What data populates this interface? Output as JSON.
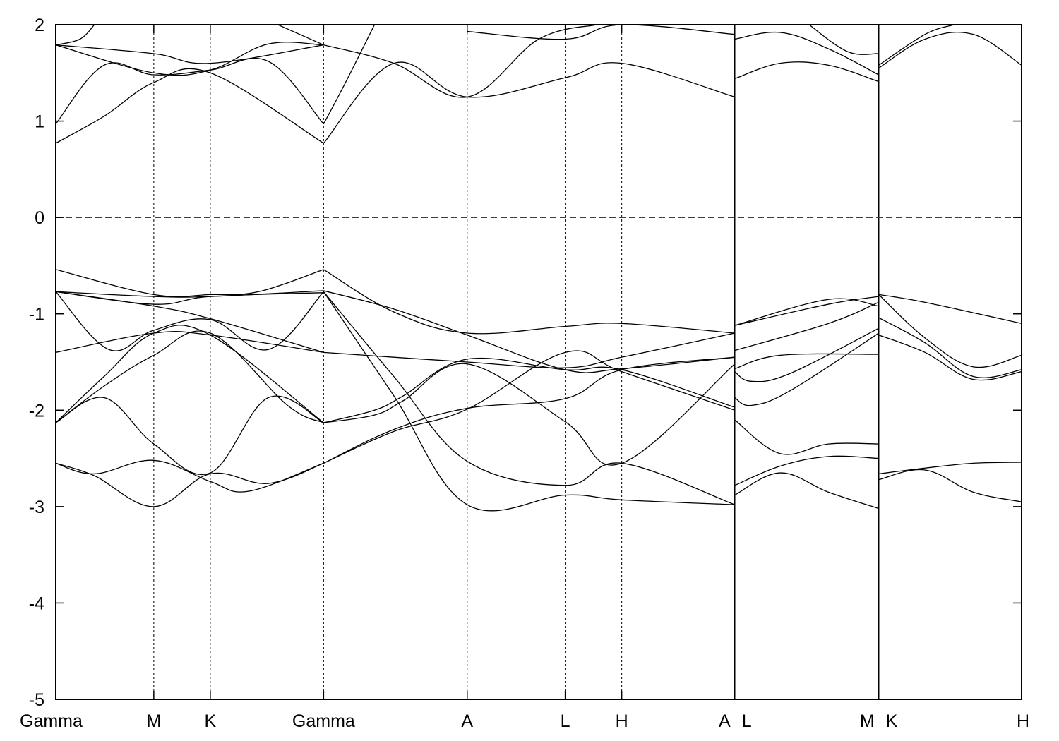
{
  "chart_data": {
    "type": "line",
    "title": "",
    "xlabel": "",
    "ylabel": "",
    "ylim": [
      -5,
      2
    ],
    "xlim": [
      0,
      1
    ],
    "yticks": [
      -5,
      -4,
      -3,
      -2,
      -1,
      0,
      1,
      2
    ],
    "grid": false,
    "legend": "none",
    "fermi_level": {
      "y": 0,
      "color": "#d40000"
    },
    "kpoints": [
      {
        "label": "Gamma",
        "x": 0.0
      },
      {
        "label": "M",
        "x": 0.1015
      },
      {
        "label": "K",
        "x": 0.16
      },
      {
        "label": "Gamma",
        "x": 0.2773
      },
      {
        "label": "A",
        "x": 0.426
      },
      {
        "label": "L",
        "x": 0.5275
      },
      {
        "label": "H",
        "x": 0.586
      },
      {
        "label": "A",
        "x": 0.703
      },
      {
        "label": "L",
        "x": 0.703
      },
      {
        "label": "M",
        "x": 0.8521
      },
      {
        "label": "K",
        "x": 0.8521
      },
      {
        "label": "H",
        "x": 1.0
      }
    ],
    "segment_breaks": [
      0.703,
      0.8521
    ],
    "series": [
      {
        "segment": 0,
        "x": [
          0,
          0.04,
          0.1015,
          0.16,
          0.22,
          0.2773
        ],
        "y": [
          -2.55,
          -2.68,
          -3.0,
          -2.66,
          -2.76,
          -2.55
        ]
      },
      {
        "segment": 0,
        "x": [
          0,
          0.04,
          0.1015,
          0.16,
          0.2,
          0.2773
        ],
        "y": [
          -2.55,
          -2.66,
          -2.52,
          -2.74,
          -2.84,
          -2.55
        ]
      },
      {
        "segment": 0,
        "x": [
          0,
          0.05,
          0.1015,
          0.16,
          0.22,
          0.2773
        ],
        "y": [
          -2.13,
          -1.87,
          -2.35,
          -2.65,
          -1.87,
          -2.13
        ]
      },
      {
        "segment": 0,
        "x": [
          0,
          0.05,
          0.1015,
          0.16,
          0.24,
          0.2773
        ],
        "y": [
          -2.13,
          -1.75,
          -1.43,
          -1.2,
          -1.95,
          -2.13
        ]
      },
      {
        "segment": 0,
        "x": [
          0,
          0.05,
          0.1015,
          0.16,
          0.2773
        ],
        "y": [
          -2.13,
          -1.65,
          -1.2,
          -1.22,
          -2.13
        ]
      },
      {
        "segment": 0,
        "x": [
          0,
          0.055,
          0.1015,
          0.16,
          0.22,
          0.2773
        ],
        "y": [
          -0.77,
          -1.37,
          -1.17,
          -1.06,
          -1.37,
          -0.77
        ]
      },
      {
        "segment": 0,
        "x": [
          0,
          0.1015,
          0.16,
          0.2773
        ],
        "y": [
          -0.77,
          -0.92,
          -1.05,
          -1.4
        ]
      },
      {
        "segment": 0,
        "x": [
          0,
          0.1015,
          0.16,
          0.2773
        ],
        "y": [
          -0.77,
          -0.9,
          -0.82,
          -0.78
        ]
      },
      {
        "segment": 0,
        "x": [
          0,
          0.1015,
          0.16,
          0.2773
        ],
        "y": [
          -0.77,
          -0.82,
          -0.82,
          -0.76
        ]
      },
      {
        "segment": 0,
        "x": [
          0,
          0.1015,
          0.16,
          0.21,
          0.2773
        ],
        "y": [
          -0.54,
          -0.8,
          -0.8,
          -0.77,
          -0.54
        ]
      },
      {
        "segment": 0,
        "x": [
          0,
          0.1015,
          0.16,
          0.2773
        ],
        "y": [
          -1.4,
          -1.2,
          -1.22,
          -1.4
        ]
      },
      {
        "segment": 0,
        "x": [
          0,
          0.05,
          0.1015,
          0.16,
          0.2773
        ],
        "y": [
          0.77,
          1.05,
          1.4,
          1.5,
          0.77
        ]
      },
      {
        "segment": 0,
        "x": [
          0,
          0.05,
          0.1015,
          0.16,
          0.22,
          0.2773
        ],
        "y": [
          0.97,
          1.58,
          1.48,
          1.53,
          1.62,
          0.97
        ]
      },
      {
        "segment": 0,
        "x": [
          0,
          0.1015,
          0.16,
          0.2773
        ],
        "y": [
          1.79,
          1.7,
          1.6,
          1.79
        ]
      },
      {
        "segment": 0,
        "x": [
          0,
          0.1015,
          0.16,
          0.22,
          0.2773
        ],
        "y": [
          1.79,
          1.5,
          1.53,
          1.8,
          1.79
        ]
      },
      {
        "segment": 0,
        "x": [
          0,
          0.025,
          0.04
        ],
        "y": [
          1.79,
          1.85,
          2.0
        ]
      },
      {
        "segment": 0,
        "x": [
          0.23,
          0.2773
        ],
        "y": [
          2.0,
          1.79
        ]
      },
      {
        "segment": 1,
        "x": [
          0.2773,
          0.35,
          0.426,
          0.5275,
          0.586,
          0.703
        ],
        "y": [
          -2.55,
          -2.2,
          -1.98,
          -1.88,
          -1.58,
          -1.45
        ]
      },
      {
        "segment": 1,
        "x": [
          0.2773,
          0.35,
          0.426,
          0.5275,
          0.586,
          0.703
        ],
        "y": [
          -2.55,
          -2.22,
          -1.99,
          -1.4,
          -1.6,
          -2.0
        ]
      },
      {
        "segment": 1,
        "x": [
          0.2773,
          0.33,
          0.36,
          0.426,
          0.5275,
          0.586,
          0.703
        ],
        "y": [
          -2.13,
          -2.0,
          -1.85,
          -1.47,
          -1.58,
          -1.58,
          -1.97
        ]
      },
      {
        "segment": 1,
        "x": [
          0.2773,
          0.33,
          0.36,
          0.426,
          0.5275,
          0.586,
          0.703
        ],
        "y": [
          -2.13,
          -2.05,
          -1.9,
          -1.52,
          -2.12,
          -2.55,
          -1.52
        ]
      },
      {
        "segment": 1,
        "x": [
          0.2773,
          0.35,
          0.426,
          0.5275,
          0.586,
          0.703
        ],
        "y": [
          -0.77,
          -1.65,
          -2.53,
          -2.78,
          -2.55,
          -2.98
        ]
      },
      {
        "segment": 1,
        "x": [
          0.2773,
          0.35,
          0.426,
          0.5275,
          0.586,
          0.703
        ],
        "y": [
          -0.77,
          -1.85,
          -2.98,
          -2.88,
          -2.93,
          -2.98
        ]
      },
      {
        "segment": 1,
        "x": [
          0.2773,
          0.35,
          0.426,
          0.5275,
          0.586,
          0.703
        ],
        "y": [
          -0.76,
          -0.95,
          -1.22,
          -1.58,
          -1.57,
          -1.45
        ]
      },
      {
        "segment": 1,
        "x": [
          0.2773,
          0.35,
          0.426,
          0.5275,
          0.586,
          0.703
        ],
        "y": [
          -0.54,
          -0.98,
          -1.2,
          -1.13,
          -1.1,
          -1.2
        ]
      },
      {
        "segment": 1,
        "x": [
          0.2773,
          0.35,
          0.426,
          0.5275,
          0.586,
          0.703
        ],
        "y": [
          -1.4,
          -1.45,
          -1.5,
          -1.56,
          -1.45,
          -1.2
        ]
      },
      {
        "segment": 1,
        "x": [
          0.2773,
          0.35,
          0.426,
          0.5275,
          0.586,
          0.703
        ],
        "y": [
          0.77,
          1.6,
          1.25,
          1.45,
          1.6,
          1.25
        ]
      },
      {
        "segment": 1,
        "x": [
          0.2773,
          0.3,
          0.33
        ],
        "y": [
          0.97,
          1.4,
          2.0
        ]
      },
      {
        "segment": 1,
        "x": [
          0.2773,
          0.35,
          0.426,
          0.5,
          0.56
        ],
        "y": [
          1.79,
          1.6,
          1.25,
          1.85,
          2.0
        ]
      },
      {
        "segment": 1,
        "x": [
          0.426,
          0.5275,
          0.586,
          0.703
        ],
        "y": [
          1.93,
          1.85,
          2.0,
          1.9
        ]
      },
      {
        "segment": 2,
        "x": [
          0.703,
          0.75,
          0.8,
          0.8521
        ],
        "y": [
          -2.88,
          -2.65,
          -2.85,
          -3.02
        ]
      },
      {
        "segment": 2,
        "x": [
          0.703,
          0.75,
          0.8,
          0.8521
        ],
        "y": [
          -2.78,
          -2.58,
          -2.48,
          -2.5
        ]
      },
      {
        "segment": 2,
        "x": [
          0.703,
          0.75,
          0.8,
          0.8521
        ],
        "y": [
          -2.1,
          -2.45,
          -2.35,
          -2.35
        ]
      },
      {
        "segment": 2,
        "x": [
          0.703,
          0.72,
          0.76,
          0.8521
        ],
        "y": [
          -1.87,
          -1.95,
          -1.8,
          -1.2
        ]
      },
      {
        "segment": 2,
        "x": [
          0.703,
          0.72,
          0.76,
          0.8521
        ],
        "y": [
          -1.6,
          -1.7,
          -1.62,
          -1.15
        ]
      },
      {
        "segment": 2,
        "x": [
          0.703,
          0.75,
          0.8521
        ],
        "y": [
          -1.57,
          -1.43,
          -1.42
        ]
      },
      {
        "segment": 2,
        "x": [
          0.703,
          0.8,
          0.8521
        ],
        "y": [
          -1.38,
          -1.1,
          -0.88
        ]
      },
      {
        "segment": 2,
        "x": [
          0.703,
          0.8,
          0.8521
        ],
        "y": [
          -1.12,
          -0.9,
          -0.82
        ]
      },
      {
        "segment": 2,
        "x": [
          0.703,
          0.8,
          0.8521
        ],
        "y": [
          -1.12,
          -0.85,
          -0.92
        ]
      },
      {
        "segment": 2,
        "x": [
          0.703,
          0.75,
          0.8,
          0.8521
        ],
        "y": [
          1.44,
          1.6,
          1.58,
          1.41
        ]
      },
      {
        "segment": 2,
        "x": [
          0.703,
          0.75,
          0.8,
          0.8521
        ],
        "y": [
          1.85,
          1.92,
          1.75,
          1.48
        ]
      },
      {
        "segment": 2,
        "x": [
          0.78,
          0.82,
          0.8521
        ],
        "y": [
          2.0,
          1.72,
          1.7
        ]
      },
      {
        "segment": 3,
        "x": [
          0.8521,
          0.9,
          0.95,
          1.0
        ],
        "y": [
          -2.72,
          -2.62,
          -2.85,
          -2.95
        ]
      },
      {
        "segment": 3,
        "x": [
          0.8521,
          0.9,
          0.95,
          1.0
        ],
        "y": [
          -2.66,
          -2.6,
          -2.55,
          -2.54
        ]
      },
      {
        "segment": 3,
        "x": [
          0.8521,
          0.9,
          0.95,
          1.0
        ],
        "y": [
          -1.22,
          -1.4,
          -1.68,
          -1.6
        ]
      },
      {
        "segment": 3,
        "x": [
          0.8521,
          0.9,
          0.95,
          1.0
        ],
        "y": [
          -1.04,
          -1.3,
          -1.65,
          -1.58
        ]
      },
      {
        "segment": 3,
        "x": [
          0.8521,
          0.9,
          0.95,
          1.0
        ],
        "y": [
          -0.8,
          -1.25,
          -1.55,
          -1.43
        ]
      },
      {
        "segment": 3,
        "x": [
          0.8521,
          0.9,
          1.0
        ],
        "y": [
          -0.8,
          -0.88,
          -1.1
        ]
      },
      {
        "segment": 3,
        "x": [
          0.8521,
          0.9,
          0.95,
          1.0
        ],
        "y": [
          1.55,
          1.85,
          1.9,
          1.58
        ]
      },
      {
        "segment": 3,
        "x": [
          0.8521,
          0.9,
          0.93
        ],
        "y": [
          1.58,
          1.9,
          2.0
        ]
      }
    ]
  }
}
